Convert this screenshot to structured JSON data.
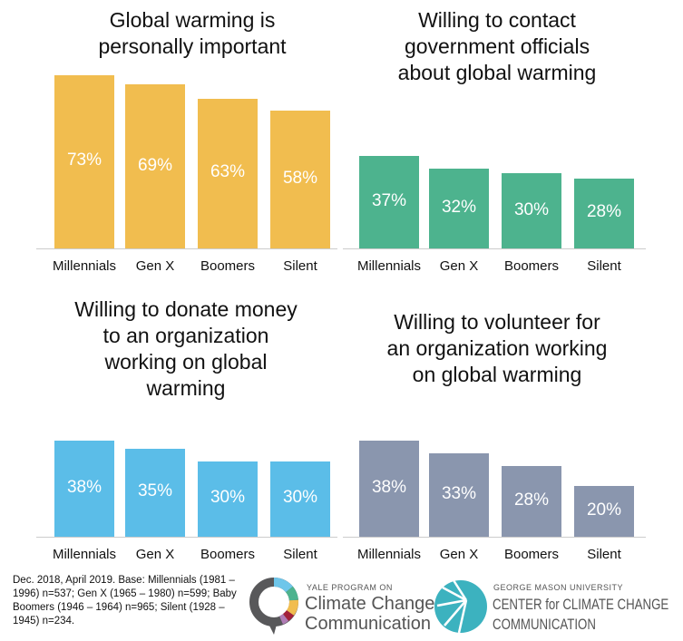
{
  "chart_data": [
    {
      "type": "bar",
      "title": "Global warming is personally important",
      "categories": [
        "Millennials",
        "Gen X",
        "Boomers",
        "Silent"
      ],
      "values": [
        73,
        69,
        63,
        58
      ],
      "data_labels": [
        "73%",
        "69%",
        "63%",
        "58%"
      ],
      "color": "#F1BD4F",
      "grid": false
    },
    {
      "type": "bar",
      "title": "Willing to contact government officials about global warming",
      "categories": [
        "Millennials",
        "Gen X",
        "Boomers",
        "Silent"
      ],
      "values": [
        37,
        32,
        30,
        28
      ],
      "data_labels": [
        "37%",
        "32%",
        "30%",
        "28%"
      ],
      "color": "#4DB38E",
      "grid": false
    },
    {
      "type": "bar",
      "title": "Willing to donate money to an organization working on global warming",
      "categories": [
        "Millennials",
        "Gen X",
        "Boomers",
        "Silent"
      ],
      "values": [
        38,
        35,
        30,
        30
      ],
      "data_labels": [
        "38%",
        "35%",
        "30%",
        "30%"
      ],
      "color": "#5BBDE8",
      "grid": false
    },
    {
      "type": "bar",
      "title": "Willing to volunteer for an organization working on global warming",
      "categories": [
        "Millennials",
        "Gen X",
        "Boomers",
        "Silent"
      ],
      "values": [
        38,
        33,
        28,
        20
      ],
      "data_labels": [
        "38%",
        "33%",
        "28%",
        "20%"
      ],
      "color": "#8A96AE",
      "grid": false
    }
  ],
  "titles": [
    [
      "Global warming is",
      "personally important"
    ],
    [
      "Willing to contact",
      "government officials",
      "about global warming"
    ],
    [
      "Willing to donate money",
      "to an organization",
      "working on global",
      "warming"
    ],
    [
      "Willing to volunteer for",
      "an organization working",
      "on global warming"
    ]
  ],
  "footer": {
    "note": "Dec. 2018, April 2019. Base: Millennials (1981 – 1996) n=537; Gen X (1965 – 1980) n=599; Baby Boomers (1946 – 1964) n=965; Silent (1928 – 1945) n=234.",
    "yale": {
      "small": "YALE PROGRAM ON",
      "line1": "Climate Change",
      "line2": "Communication"
    },
    "gmu": {
      "small": "GEORGE MASON UNIVERSITY",
      "line1": "CENTER for CLIMATE CHANGE",
      "line2": "COMMUNICATION"
    }
  }
}
